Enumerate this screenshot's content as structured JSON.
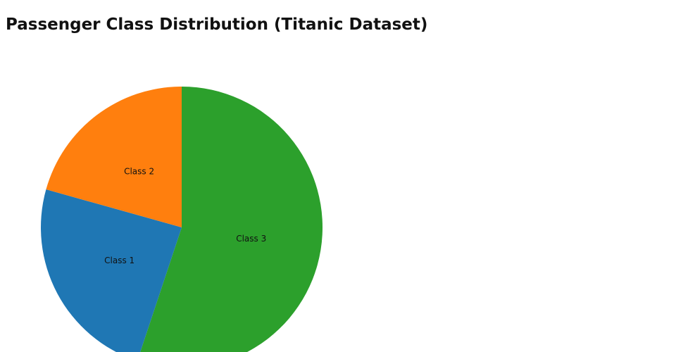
{
  "chart_data": {
    "type": "pie",
    "title": "Passenger Class Distribution (Titanic Dataset)",
    "start_angle": "12 o'clock",
    "direction": "clockwise",
    "slices": [
      {
        "label": "Class 3",
        "value": 491,
        "color": "#2ca02c"
      },
      {
        "label": "Class 1",
        "value": 216,
        "color": "#1f77b4"
      },
      {
        "label": "Class 2",
        "value": 184,
        "color": "#ff7f0e"
      }
    ]
  }
}
